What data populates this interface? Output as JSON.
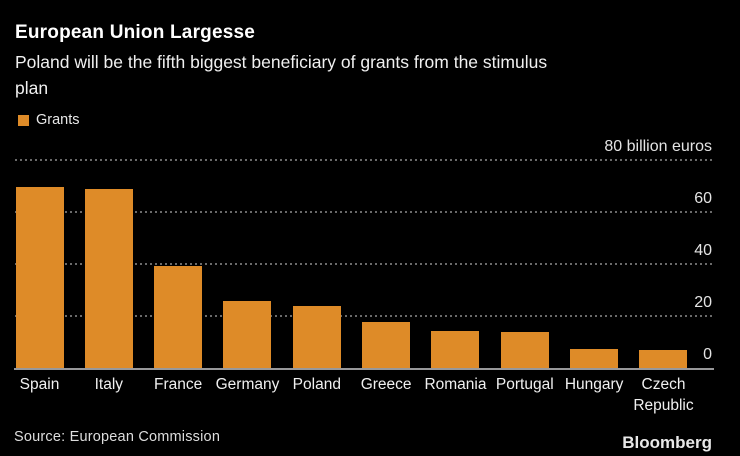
{
  "header": {
    "title": "European Union Largesse",
    "subtitle_lines": [
      "Poland will be the fifth biggest beneficiary of grants from the stimulus",
      "plan"
    ]
  },
  "legend": {
    "label": "Grants"
  },
  "chart_data": {
    "type": "bar",
    "title": "European Union Largesse",
    "subtitle": "Poland will be the fifth biggest beneficiary of grants from the stimulus plan",
    "series_name": "Grants",
    "categories": [
      "Spain",
      "Italy",
      "France",
      "Germany",
      "Poland",
      "Greece",
      "Romania",
      "Portugal",
      "Hungary",
      "Czech Republic"
    ],
    "values": [
      69.5,
      68.9,
      39.4,
      25.6,
      23.9,
      17.8,
      14.2,
      13.9,
      7.2,
      7.1
    ],
    "ylabel": "billion euros",
    "ylim": [
      0,
      80
    ],
    "yticks": [
      {
        "value": 80,
        "label": "80 billion euros"
      },
      {
        "value": 60,
        "label": "60"
      },
      {
        "value": 40,
        "label": "40"
      },
      {
        "value": 20,
        "label": "20"
      },
      {
        "value": 0,
        "label": "0"
      }
    ],
    "grid": "dotted-horizontal",
    "legend_position": "top-left",
    "bar_color": "#de8b28"
  },
  "footer": {
    "source": "Source: European Commission",
    "brand": "Bloomberg"
  },
  "colors": {
    "background": "#000000",
    "bar": "#de8b28",
    "grid": "#6a6a6a",
    "baseline": "#98989a",
    "text": "#f0f0f0"
  }
}
